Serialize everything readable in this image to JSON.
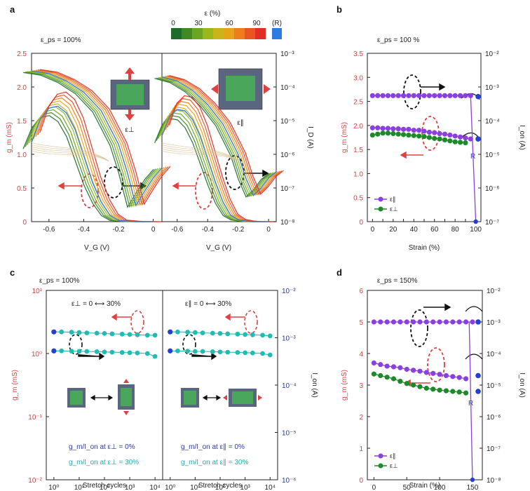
{
  "panels": {
    "a": {
      "letter": "a",
      "condition": "ε_ps = 100%",
      "left_label": "ε⊥",
      "right_label": "ε∥"
    },
    "b": {
      "letter": "b",
      "condition": "ε_ps = 100 %",
      "R_label": "R"
    },
    "c": {
      "letter": "c",
      "condition": "ε_ps = 100%",
      "left_header": "ε⊥ = 0 ⟷ 30%",
      "right_header": "ε∥ = 0 ⟷ 30%",
      "left_note1": "g_m/I_on at ε⊥ = 0%",
      "left_note2": "g_m/I_on at ε⊥ = 30%",
      "right_note1": "g_m/I_on at ε∥ = 0%",
      "right_note2": "g_m/I_on at ε∥ = 30%"
    },
    "d": {
      "letter": "d",
      "condition": "ε_ps = 150%",
      "R_label": "R"
    }
  },
  "colorbar": {
    "title": "ε (%)",
    "ticks": [
      "0",
      "30",
      "60",
      "90"
    ],
    "R_label": "(R)",
    "colors": [
      "#1f6b2a",
      "#3f8a24",
      "#6aa51f",
      "#9ab81c",
      "#c9b318",
      "#e5a317",
      "#ee7d1b",
      "#ea5322",
      "#e02d26"
    ],
    "R_color": "#2f7be0"
  },
  "colors": {
    "red_axis": "#d94141",
    "purple": "#8a3fe0",
    "green": "#1d8a2a",
    "blue_dot": "#2440d0",
    "cyan": "#20bcb4",
    "arrow_red": "#e04040"
  },
  "chart_data": [
    {
      "id": "a-left",
      "type": "line",
      "title": "",
      "xlabel": "V_G (V)",
      "ylabel_left": "g_m (mS)",
      "ylabel_right": "",
      "xlim": [
        -0.7,
        0.05
      ],
      "ylim_left": [
        0,
        2.5
      ],
      "ylim_right": [
        1e-08,
        0.001
      ],
      "yscale_right": "log",
      "x_ticks": [
        "-0.6",
        "-0.4",
        "-0.2",
        "0"
      ],
      "y_ticks_left": [
        "0",
        "0.5",
        "1.0",
        "1.5",
        "2.0",
        "2.5"
      ],
      "y_ticks_right": [],
      "gm_curve": {
        "x": [
          -0.7,
          -0.65,
          -0.6,
          -0.55,
          -0.5,
          -0.45,
          -0.4,
          -0.35,
          -0.3,
          -0.25,
          -0.2,
          -0.15,
          -0.1,
          0.0
        ],
        "y": [
          1.2,
          1.55,
          1.72,
          1.75,
          1.65,
          1.4,
          1.0,
          0.6,
          0.3,
          0.1,
          0.02,
          0.01,
          0.0,
          0.0
        ]
      },
      "id_curve": {
        "x": [
          -0.7,
          -0.6,
          -0.5,
          -0.4,
          -0.3,
          -0.2,
          -0.15,
          -0.1,
          -0.05,
          0.0,
          0.05
        ],
        "y": [
          0.0003,
          0.00025,
          0.00015,
          7e-05,
          2e-05,
          2e-06,
          3e-07,
          3e-08,
          8e-08,
          2e-07,
          4e-07
        ]
      }
    },
    {
      "id": "a-right",
      "type": "line",
      "title": "",
      "xlabel": "V_G (V)",
      "ylabel_left": "",
      "ylabel_right": "I_D (A)",
      "xlim": [
        -0.7,
        0.05
      ],
      "ylim_left": [
        0,
        2.5
      ],
      "ylim_right": [
        1e-08,
        0.001
      ],
      "yscale_right": "log",
      "x_ticks": [
        "-0.6",
        "-0.4",
        "-0.2",
        "0"
      ],
      "y_ticks_right": [
        "10⁻⁸",
        "10⁻⁷",
        "10⁻⁶",
        "10⁻⁵",
        "10⁻⁴",
        "10⁻³"
      ],
      "gm_curve": {
        "x": [
          -0.7,
          -0.65,
          -0.6,
          -0.55,
          -0.5,
          -0.45,
          -0.4,
          -0.35,
          -0.3,
          -0.25,
          -0.2,
          -0.15,
          -0.1,
          0.0
        ],
        "y": [
          1.3,
          1.6,
          1.7,
          1.68,
          1.55,
          1.3,
          0.95,
          0.6,
          0.3,
          0.1,
          0.03,
          0.01,
          0.0,
          0.0
        ]
      },
      "id_curve": {
        "x": [
          -0.7,
          -0.6,
          -0.5,
          -0.4,
          -0.3,
          -0.2,
          -0.15,
          -0.1,
          -0.05,
          0.0,
          0.05
        ],
        "y": [
          0.0002,
          0.00015,
          8e-05,
          3e-05,
          8e-06,
          1e-06,
          2e-07,
          6e-08,
          1e-07,
          2e-07,
          3e-07
        ]
      }
    },
    {
      "id": "b",
      "type": "scatter",
      "title": "",
      "xlabel": "Strain (%)",
      "ylabel_left": "g_m (mS)",
      "ylabel_right": "I_on (A)",
      "xlim": [
        -5,
        105
      ],
      "ylim_left": [
        0,
        3.5
      ],
      "ylim_right": [
        1e-07,
        0.01
      ],
      "yscale_right": "log",
      "x_ticks": [
        "0",
        "10",
        "20",
        "30",
        "40",
        "50",
        "60",
        "70",
        "80",
        "90",
        "100"
      ],
      "y_ticks_left": [
        "0",
        "0.5",
        "1.0",
        "1.5",
        "2.0",
        "2.5",
        "3.0",
        "3.5"
      ],
      "y_ticks_right": [
        "10⁻⁷",
        "10⁻⁶",
        "10⁻⁵",
        "10⁻⁴",
        "10⁻³",
        "10⁻²"
      ],
      "series": [
        {
          "name": "ε∥",
          "color": "#8a3fe0",
          "x": [
            0,
            5,
            10,
            15,
            20,
            25,
            30,
            35,
            40,
            45,
            50,
            55,
            60,
            65,
            70,
            75,
            80,
            85,
            90,
            95
          ],
          "y": [
            1.95,
            1.95,
            1.94,
            1.94,
            1.93,
            1.93,
            1.92,
            1.92,
            1.9,
            1.9,
            1.88,
            1.86,
            1.85,
            1.83,
            1.82,
            1.8,
            1.78,
            1.76,
            1.74,
            1.72
          ]
        },
        {
          "name": "ε⊥",
          "color": "#1d8a2a",
          "x": [
            0,
            5,
            10,
            15,
            20,
            25,
            30,
            35,
            40,
            45,
            50,
            55,
            60,
            65,
            70,
            75,
            80,
            85,
            90
          ],
          "y": [
            1.8,
            1.82,
            1.84,
            1.84,
            1.83,
            1.82,
            1.81,
            1.8,
            1.79,
            1.78,
            1.77,
            1.75,
            1.73,
            1.72,
            1.7,
            1.68,
            1.66,
            1.65,
            1.64
          ]
        },
        {
          "name": "I_on",
          "color": "#8a3fe0",
          "x": [
            0,
            5,
            10,
            15,
            20,
            25,
            30,
            35,
            40,
            45,
            50,
            55,
            60,
            65,
            70,
            75,
            80,
            85,
            90,
            95
          ],
          "y": [
            2.62,
            2.62,
            2.62,
            2.62,
            2.62,
            2.62,
            2.62,
            2.62,
            2.62,
            2.62,
            2.62,
            2.62,
            2.62,
            2.62,
            2.62,
            2.62,
            2.62,
            2.62,
            2.62,
            2.62
          ]
        }
      ],
      "R_points": [
        2.6,
        1.72
      ],
      "drop_to_zero_x": 100
    },
    {
      "id": "c-left",
      "type": "scatter",
      "title": "",
      "xlabel": "Stretch cycles",
      "ylabel_left": "g_m (mS)",
      "xscale": "log",
      "yscale_left": "log",
      "xlim": [
        0.5,
        20000
      ],
      "ylim_left": [
        0.01,
        10
      ],
      "x_ticks": [
        "10⁰",
        "10¹",
        "10²",
        "10³",
        "10⁴"
      ],
      "y_ticks_left": [
        "10⁻²",
        "10⁻¹",
        "10⁰",
        "10¹"
      ],
      "series": [
        {
          "name": "",
          "color": "#20bcb4",
          "x": [
            1,
            2,
            5,
            10,
            20,
            50,
            100,
            200,
            500,
            1000,
            2000,
            5000,
            10000
          ],
          "y": [
            2.2,
            2.2,
            2.18,
            2.15,
            2.12,
            2.1,
            2.08,
            2.05,
            2.03,
            2.0,
            1.98,
            1.95,
            1.95
          ]
        },
        {
          "name": "",
          "color": "#20bcb4",
          "x": [
            1,
            2,
            5,
            10,
            20,
            50,
            100,
            200,
            500,
            1000,
            2000,
            5000,
            10000
          ],
          "y": [
            1.1,
            1.1,
            1.09,
            1.08,
            1.08,
            1.07,
            1.06,
            1.05,
            1.04,
            1.03,
            1.02,
            1.0,
            0.9
          ]
        }
      ]
    },
    {
      "id": "c-right",
      "type": "scatter",
      "title": "",
      "xlabel": "Stretch cycles",
      "ylabel_right": "I_on (A)",
      "xscale": "log",
      "yscale_right": "log",
      "xlim": [
        0.5,
        20000
      ],
      "ylim_right": [
        1e-06,
        0.01
      ],
      "x_ticks": [
        "10⁰",
        "10¹",
        "10²",
        "10³",
        "10⁴"
      ],
      "y_ticks_right": [
        "10⁻⁶",
        "10⁻⁵",
        "10⁻⁴",
        "10⁻³",
        "10⁻²"
      ],
      "series": [
        {
          "name": "",
          "color": "#20bcb4",
          "x": [
            1,
            2,
            5,
            10,
            20,
            50,
            100,
            200,
            500,
            1000,
            2000,
            5000,
            10000
          ],
          "y": [
            2.2,
            2.2,
            2.18,
            2.15,
            2.12,
            2.1,
            2.08,
            2.05,
            2.03,
            2.0,
            1.98,
            1.95,
            1.9
          ]
        },
        {
          "name": "",
          "color": "#20bcb4",
          "x": [
            1,
            2,
            5,
            10,
            20,
            50,
            100,
            200,
            500,
            1000,
            2000,
            5000,
            10000
          ],
          "y": [
            1.1,
            1.1,
            1.09,
            1.08,
            1.08,
            1.07,
            1.06,
            1.05,
            1.04,
            1.03,
            1.02,
            1.0,
            0.95
          ]
        }
      ]
    },
    {
      "id": "d",
      "type": "scatter",
      "title": "",
      "xlabel": "Strain (%)",
      "ylabel_left": "g_m (mS)",
      "ylabel_right": "I_on (A)",
      "xlim": [
        -10,
        165
      ],
      "ylim_left": [
        0,
        6
      ],
      "ylim_right": [
        1e-08,
        0.01
      ],
      "yscale_right": "log",
      "x_ticks": [
        "0",
        "50",
        "100",
        "150"
      ],
      "y_ticks_left": [
        "0",
        "1",
        "2",
        "3",
        "4",
        "5",
        "6"
      ],
      "y_ticks_right": [
        "10⁻⁸",
        "10⁻⁷",
        "10⁻⁶",
        "10⁻⁵",
        "10⁻⁴",
        "10⁻³",
        "10⁻²"
      ],
      "series": [
        {
          "name": "ε∥",
          "color": "#8a3fe0",
          "x": [
            0,
            10,
            20,
            30,
            40,
            50,
            60,
            70,
            80,
            90,
            100,
            110,
            120,
            130,
            140
          ],
          "y": [
            3.7,
            3.65,
            3.6,
            3.58,
            3.55,
            3.5,
            3.47,
            3.44,
            3.4,
            3.37,
            3.34,
            3.3,
            3.27,
            3.24,
            3.2
          ]
        },
        {
          "name": "ε⊥",
          "color": "#1d8a2a",
          "x": [
            0,
            10,
            20,
            30,
            40,
            50,
            60,
            70,
            80,
            90,
            100,
            110,
            120,
            130,
            140
          ],
          "y": [
            3.35,
            3.3,
            3.25,
            3.2,
            3.12,
            3.05,
            3.0,
            2.95,
            2.9,
            2.87,
            2.84,
            2.82,
            2.8,
            2.78,
            2.75
          ]
        },
        {
          "name": "I_on",
          "color": "#8a3fe0",
          "x": [
            0,
            10,
            20,
            30,
            40,
            50,
            60,
            70,
            80,
            90,
            100,
            110,
            120,
            130,
            140,
            150
          ],
          "y": [
            5.0,
            5.0,
            5.0,
            5.0,
            5.0,
            5.0,
            5.0,
            5.0,
            5.0,
            5.0,
            5.0,
            5.0,
            5.0,
            5.0,
            5.0,
            5.0
          ]
        }
      ],
      "R_points": [
        5.0,
        3.3,
        2.8
      ],
      "drop_to_zero_x": 150
    }
  ]
}
